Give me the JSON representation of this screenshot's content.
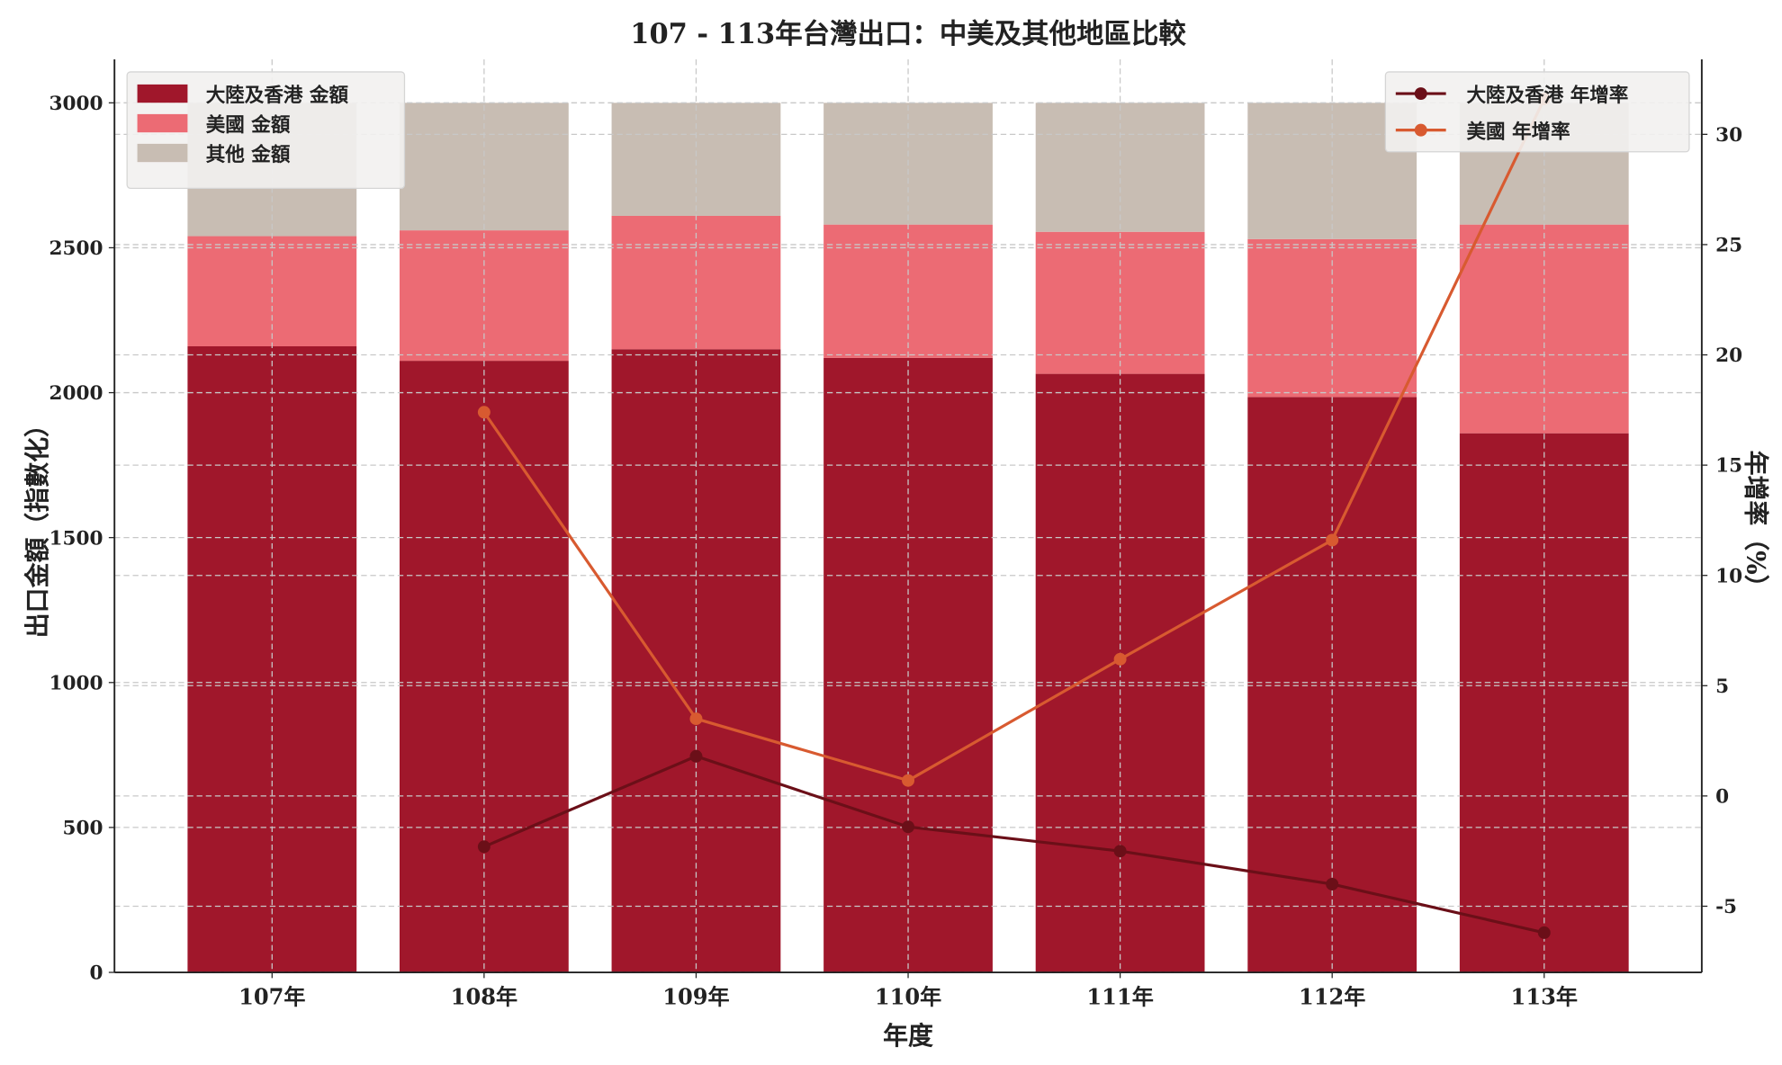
{
  "chart_data": {
    "type": "bar",
    "stacked": true,
    "title": "107 - 113年台灣出口：中美及其他地區比較",
    "xlabel": "年度",
    "ylabel": "出口金額（指數化）",
    "y2label": "年增率（%）",
    "categories": [
      "107年",
      "108年",
      "109年",
      "110年",
      "111年",
      "112年",
      "113年"
    ],
    "ylim": [
      0,
      3150
    ],
    "y_ticks": [
      0,
      500,
      1000,
      1500,
      2000,
      2500,
      3000
    ],
    "y2lim": [
      -8,
      33.4
    ],
    "y2_ticks": [
      -5,
      0,
      5,
      10,
      15,
      20,
      25,
      30
    ],
    "grid": true,
    "bar_series": [
      {
        "name": "大陸及香港 金額",
        "color": "#a0172b",
        "values": [
          2160,
          2110,
          2150,
          2120,
          2065,
          1985,
          1860
        ]
      },
      {
        "name": "美國 金額",
        "color": "#ec6b74",
        "values": [
          380,
          450,
          460,
          460,
          490,
          545,
          720
        ]
      },
      {
        "name": "其他 金額",
        "color": "#c8bdb3",
        "values": [
          460,
          440,
          390,
          420,
          445,
          470,
          420
        ]
      }
    ],
    "line_series": [
      {
        "name": "大陸及香港 年增率",
        "color": "#6b0f18",
        "values": [
          null,
          -2.3,
          1.8,
          -1.4,
          -2.5,
          -4.0,
          -6.2
        ]
      },
      {
        "name": "美國 年增率",
        "color": "#d85a30",
        "values": [
          null,
          17.4,
          3.5,
          0.7,
          6.2,
          11.6,
          31.6
        ]
      }
    ],
    "legend_bars": "top-left",
    "legend_lines": "top-right"
  }
}
